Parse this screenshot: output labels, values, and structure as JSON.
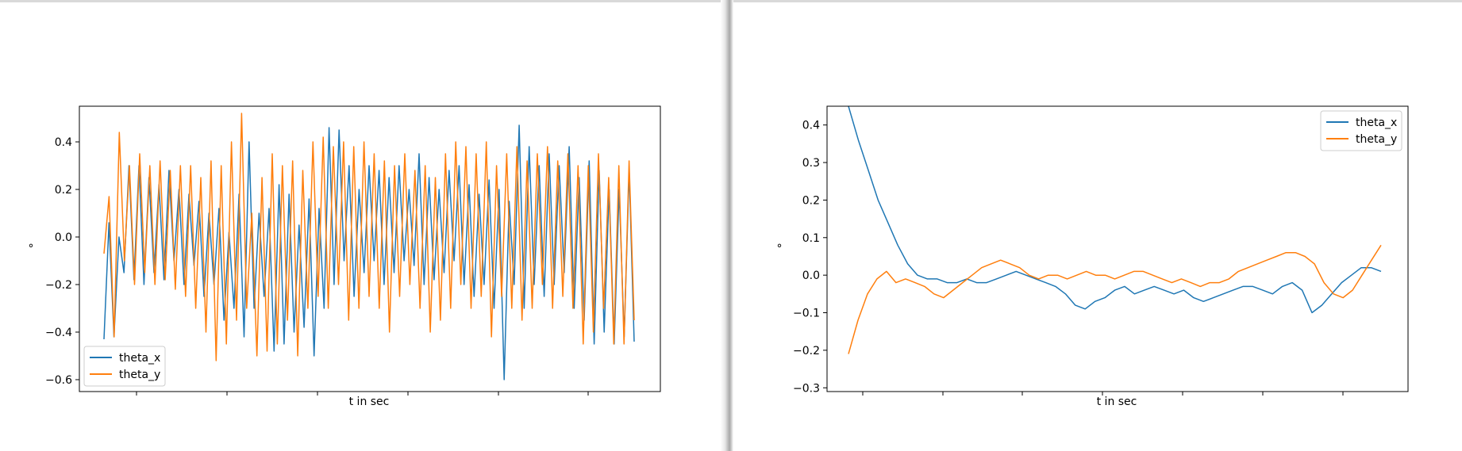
{
  "chart_data": [
    {
      "type": "line",
      "xlabel": "t in sec",
      "ylabel": "°",
      "ylim": [
        -0.65,
        0.55
      ],
      "yticks": [
        0.4,
        0.2,
        0.0,
        -0.2,
        -0.4,
        -0.6
      ],
      "ytick_labels": [
        "0.4",
        "0.2",
        "0.0",
        "−0.2",
        "−0.4",
        "−0.6"
      ],
      "legend_position": "lower-left",
      "series": [
        {
          "name": "theta_x",
          "color": "#1f77b4",
          "values": [
            -0.43,
            0.06,
            -0.42,
            0.0,
            -0.15,
            0.3,
            -0.18,
            0.3,
            -0.2,
            0.25,
            -0.15,
            0.22,
            -0.18,
            0.28,
            -0.1,
            0.2,
            -0.2,
            0.18,
            -0.12,
            0.15,
            -0.25,
            0.1,
            -0.2,
            0.12,
            -0.35,
            0.02,
            -0.3,
            0.18,
            -0.42,
            0.4,
            -0.3,
            0.1,
            -0.25,
            0.12,
            -0.48,
            0.22,
            -0.45,
            0.18,
            -0.4,
            0.05,
            -0.38,
            0.16,
            -0.5,
            0.12,
            -0.3,
            0.46,
            -0.2,
            0.45,
            -0.1,
            0.3,
            -0.25,
            0.2,
            -0.15,
            0.3,
            -0.1,
            0.28,
            -0.2,
            0.25,
            -0.15,
            0.3,
            -0.1,
            0.2,
            -0.12,
            0.35,
            -0.2,
            0.25,
            -0.18,
            0.2,
            -0.15,
            0.28,
            -0.1,
            0.3,
            -0.2,
            0.22,
            -0.25,
            0.18,
            -0.2,
            0.24,
            -0.3,
            0.2,
            -0.6,
            0.15,
            -0.2,
            0.47,
            -0.3,
            0.38,
            -0.2,
            0.3,
            -0.25,
            0.35,
            -0.2,
            0.3,
            -0.15,
            0.38,
            -0.3,
            0.25,
            -0.35,
            0.32,
            -0.45,
            0.28,
            -0.4,
            0.2,
            -0.45,
            0.2,
            -0.42,
            0.28,
            -0.44
          ]
        },
        {
          "name": "theta_y",
          "color": "#ff7f0e",
          "values": [
            -0.07,
            0.17,
            -0.42,
            0.44,
            -0.1,
            0.3,
            -0.2,
            0.35,
            -0.15,
            0.3,
            -0.2,
            0.32,
            -0.18,
            0.28,
            -0.22,
            0.3,
            -0.25,
            0.3,
            -0.3,
            0.25,
            -0.4,
            0.32,
            -0.52,
            0.3,
            -0.45,
            0.4,
            -0.35,
            0.52,
            -0.3,
            0.1,
            -0.5,
            0.25,
            -0.48,
            0.35,
            -0.45,
            0.3,
            -0.35,
            0.32,
            -0.5,
            0.28,
            -0.3,
            0.4,
            -0.25,
            0.42,
            -0.3,
            0.38,
            -0.2,
            0.4,
            -0.35,
            0.38,
            -0.3,
            0.4,
            -0.25,
            0.35,
            -0.3,
            0.32,
            -0.4,
            0.3,
            -0.25,
            0.35,
            -0.2,
            0.28,
            -0.3,
            0.3,
            -0.4,
            0.25,
            -0.35,
            0.35,
            -0.3,
            0.4,
            -0.2,
            0.38,
            -0.3,
            0.35,
            -0.25,
            0.4,
            -0.42,
            0.3,
            -0.25,
            0.35,
            -0.3,
            0.38,
            -0.35,
            0.32,
            -0.3,
            0.35,
            -0.2,
            0.38,
            -0.3,
            0.32,
            -0.25,
            0.35,
            -0.3,
            0.3,
            -0.45,
            0.3,
            -0.4,
            0.35,
            -0.3,
            0.25,
            -0.45,
            0.3,
            -0.45,
            0.32,
            -0.35
          ]
        }
      ]
    },
    {
      "type": "line",
      "xlabel": "t in sec",
      "ylabel": "°",
      "ylim": [
        -0.31,
        0.45
      ],
      "yticks": [
        0.4,
        0.3,
        0.2,
        0.1,
        0.0,
        -0.1,
        -0.2,
        -0.3
      ],
      "ytick_labels": [
        "0.4",
        "0.3",
        "0.2",
        "0.1",
        "0.0",
        "−0.1",
        "−0.2",
        "−0.3"
      ],
      "legend_position": "upper-right",
      "series": [
        {
          "name": "theta_x",
          "color": "#1f77b4",
          "values": [
            0.45,
            0.36,
            0.28,
            0.2,
            0.14,
            0.08,
            0.03,
            0.0,
            -0.01,
            -0.01,
            -0.02,
            -0.02,
            -0.01,
            -0.02,
            -0.02,
            -0.01,
            0.0,
            0.01,
            0.0,
            -0.01,
            -0.02,
            -0.03,
            -0.05,
            -0.08,
            -0.09,
            -0.07,
            -0.06,
            -0.04,
            -0.03,
            -0.05,
            -0.04,
            -0.03,
            -0.04,
            -0.05,
            -0.04,
            -0.06,
            -0.07,
            -0.06,
            -0.05,
            -0.04,
            -0.03,
            -0.03,
            -0.04,
            -0.05,
            -0.03,
            -0.02,
            -0.04,
            -0.1,
            -0.08,
            -0.05,
            -0.02,
            0.0,
            0.02,
            0.02,
            0.01
          ]
        },
        {
          "name": "theta_y",
          "color": "#ff7f0e",
          "values": [
            -0.21,
            -0.12,
            -0.05,
            -0.01,
            0.01,
            -0.02,
            -0.01,
            -0.02,
            -0.03,
            -0.05,
            -0.06,
            -0.04,
            -0.02,
            0.0,
            0.02,
            0.03,
            0.04,
            0.03,
            0.02,
            0.0,
            -0.01,
            0.0,
            0.0,
            -0.01,
            0.0,
            0.01,
            0.0,
            0.0,
            -0.01,
            0.0,
            0.01,
            0.01,
            0.0,
            -0.01,
            -0.02,
            -0.01,
            -0.02,
            -0.03,
            -0.02,
            -0.02,
            -0.01,
            0.01,
            0.02,
            0.03,
            0.04,
            0.05,
            0.06,
            0.06,
            0.05,
            0.03,
            -0.02,
            -0.05,
            -0.06,
            -0.04,
            0.0,
            0.04,
            0.08
          ]
        }
      ]
    }
  ]
}
